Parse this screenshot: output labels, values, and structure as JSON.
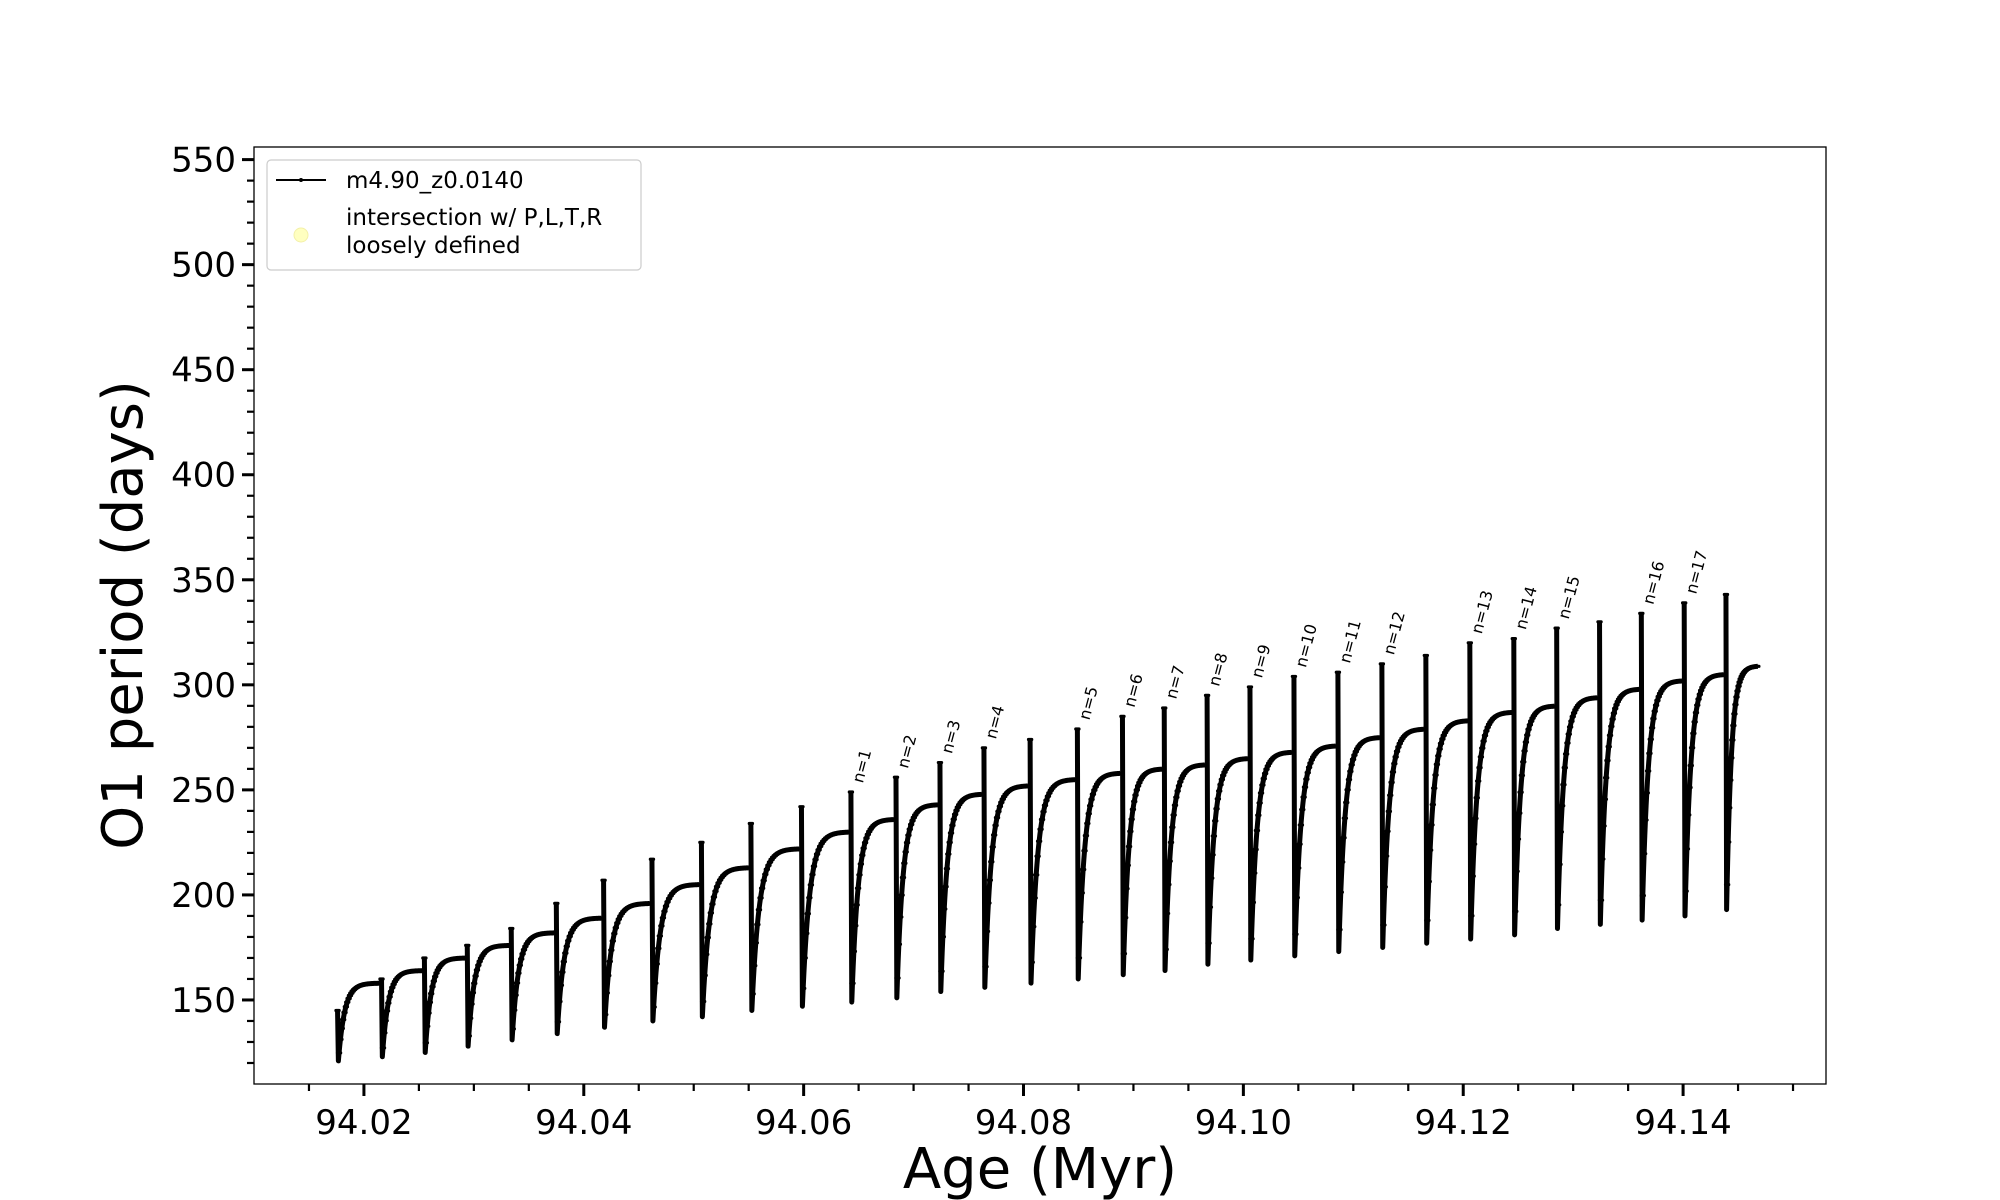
{
  "chart_data": {
    "type": "line",
    "title": "",
    "xlabel": "Age (Myr)",
    "ylabel": "O1 period (days)",
    "xlim": [
      94.01,
      94.153
    ],
    "ylim": [
      110,
      556
    ],
    "x_major_ticks": [
      94.02,
      94.04,
      94.06,
      94.08,
      94.1,
      94.12,
      94.14
    ],
    "x_tick_labels": [
      "94.02",
      "94.04",
      "94.06",
      "94.08",
      "94.10",
      "94.12",
      "94.14"
    ],
    "x_minor_step": 0.005,
    "y_major_ticks": [
      150,
      200,
      250,
      300,
      350,
      400,
      450,
      500,
      550
    ],
    "y_tick_labels": [
      "150",
      "200",
      "250",
      "300",
      "350",
      "400",
      "450",
      "500",
      "550"
    ],
    "y_minor_step": 10,
    "grid": false,
    "legend_position": "top-left",
    "legend": [
      {
        "name": "m4.90_z0.0140",
        "marker": "line-dot",
        "color": "#000000"
      },
      {
        "name": "intersection w/ P,L,T,R\nloosely defined",
        "marker": "circle",
        "color": "#ffffc0"
      }
    ],
    "series": [
      {
        "name": "m4.90_z0.0140",
        "color": "#000000",
        "cycles": [
          {
            "start": 94.0176,
            "end": 94.0214,
            "min": 121,
            "plateau": 158,
            "spike": 145
          },
          {
            "start": 94.0216,
            "end": 94.0253,
            "min": 123,
            "plateau": 164,
            "spike": 160
          },
          {
            "start": 94.0255,
            "end": 94.0292,
            "min": 125,
            "plateau": 170,
            "spike": 170
          },
          {
            "start": 94.0294,
            "end": 94.0332,
            "min": 128,
            "plateau": 176,
            "spike": 176
          },
          {
            "start": 94.0334,
            "end": 94.0373,
            "min": 131,
            "plateau": 182,
            "spike": 184
          },
          {
            "start": 94.0375,
            "end": 94.0416,
            "min": 134,
            "plateau": 189,
            "spike": 196
          },
          {
            "start": 94.0418,
            "end": 94.046,
            "min": 137,
            "plateau": 196,
            "spike": 207
          },
          {
            "start": 94.0462,
            "end": 94.0505,
            "min": 140,
            "plateau": 205,
            "spike": 217
          },
          {
            "start": 94.0507,
            "end": 94.055,
            "min": 142,
            "plateau": 213,
            "spike": 225
          },
          {
            "start": 94.0552,
            "end": 94.0596,
            "min": 145,
            "plateau": 222,
            "spike": 234
          },
          {
            "start": 94.0598,
            "end": 94.0641,
            "min": 147,
            "plateau": 230,
            "spike": 242
          },
          {
            "start": 94.0643,
            "end": 94.0682,
            "min": 149,
            "plateau": 236,
            "spike": 249
          },
          {
            "start": 94.0684,
            "end": 94.0722,
            "min": 151,
            "plateau": 243,
            "spike": 256
          },
          {
            "start": 94.0724,
            "end": 94.0762,
            "min": 154,
            "plateau": 248,
            "spike": 263
          },
          {
            "start": 94.0764,
            "end": 94.0804,
            "min": 156,
            "plateau": 252,
            "spike": 270
          },
          {
            "start": 94.0806,
            "end": 94.0847,
            "min": 158,
            "plateau": 255,
            "spike": 274
          },
          {
            "start": 94.0849,
            "end": 94.0888,
            "min": 160,
            "plateau": 258,
            "spike": 279
          },
          {
            "start": 94.089,
            "end": 94.0926,
            "min": 162,
            "plateau": 260,
            "spike": 285
          },
          {
            "start": 94.0928,
            "end": 94.0965,
            "min": 164,
            "plateau": 262,
            "spike": 289
          },
          {
            "start": 94.0967,
            "end": 94.1004,
            "min": 167,
            "plateau": 265,
            "spike": 295
          },
          {
            "start": 94.1006,
            "end": 94.1044,
            "min": 169,
            "plateau": 268,
            "spike": 299
          },
          {
            "start": 94.1046,
            "end": 94.1084,
            "min": 171,
            "plateau": 271,
            "spike": 304
          },
          {
            "start": 94.1086,
            "end": 94.1124,
            "min": 173,
            "plateau": 275,
            "spike": 306
          },
          {
            "start": 94.1126,
            "end": 94.1164,
            "min": 175,
            "plateau": 279,
            "spike": 310
          },
          {
            "start": 94.1166,
            "end": 94.1204,
            "min": 177,
            "plateau": 283,
            "spike": 314
          },
          {
            "start": 94.1206,
            "end": 94.1244,
            "min": 179,
            "plateau": 287,
            "spike": 320
          },
          {
            "start": 94.1246,
            "end": 94.1283,
            "min": 181,
            "plateau": 290,
            "spike": 322
          },
          {
            "start": 94.1285,
            "end": 94.1322,
            "min": 184,
            "plateau": 294,
            "spike": 327
          },
          {
            "start": 94.1324,
            "end": 94.136,
            "min": 186,
            "plateau": 298,
            "spike": 330
          },
          {
            "start": 94.1362,
            "end": 94.1399,
            "min": 188,
            "plateau": 302,
            "spike": 334
          },
          {
            "start": 94.1401,
            "end": 94.1437,
            "min": 190,
            "plateau": 305,
            "spike": 339
          },
          {
            "start": 94.1439,
            "end": 94.1468,
            "min": 193,
            "plateau": 309,
            "spike": 343
          }
        ]
      }
    ],
    "annotations": [
      {
        "text": "n=1",
        "x": 94.0641,
        "y": 251
      },
      {
        "text": "n=2",
        "x": 94.0682,
        "y": 258
      },
      {
        "text": "n=3",
        "x": 94.0722,
        "y": 265
      },
      {
        "text": "n=4",
        "x": 94.0762,
        "y": 272
      },
      {
        "text": "n=5",
        "x": 94.0847,
        "y": 281
      },
      {
        "text": "n=6",
        "x": 94.0888,
        "y": 287
      },
      {
        "text": "n=7",
        "x": 94.0926,
        "y": 291
      },
      {
        "text": "n=8",
        "x": 94.0965,
        "y": 297
      },
      {
        "text": "n=9",
        "x": 94.1004,
        "y": 301
      },
      {
        "text": "n=10",
        "x": 94.1044,
        "y": 306
      },
      {
        "text": "n=11",
        "x": 94.1084,
        "y": 308
      },
      {
        "text": "n=12",
        "x": 94.1124,
        "y": 312
      },
      {
        "text": "n=13",
        "x": 94.1204,
        "y": 322
      },
      {
        "text": "n=14",
        "x": 94.1244,
        "y": 324
      },
      {
        "text": "n=15",
        "x": 94.1283,
        "y": 329
      },
      {
        "text": "n=16",
        "x": 94.136,
        "y": 336
      },
      {
        "text": "n=17",
        "x": 94.1399,
        "y": 341
      }
    ]
  }
}
